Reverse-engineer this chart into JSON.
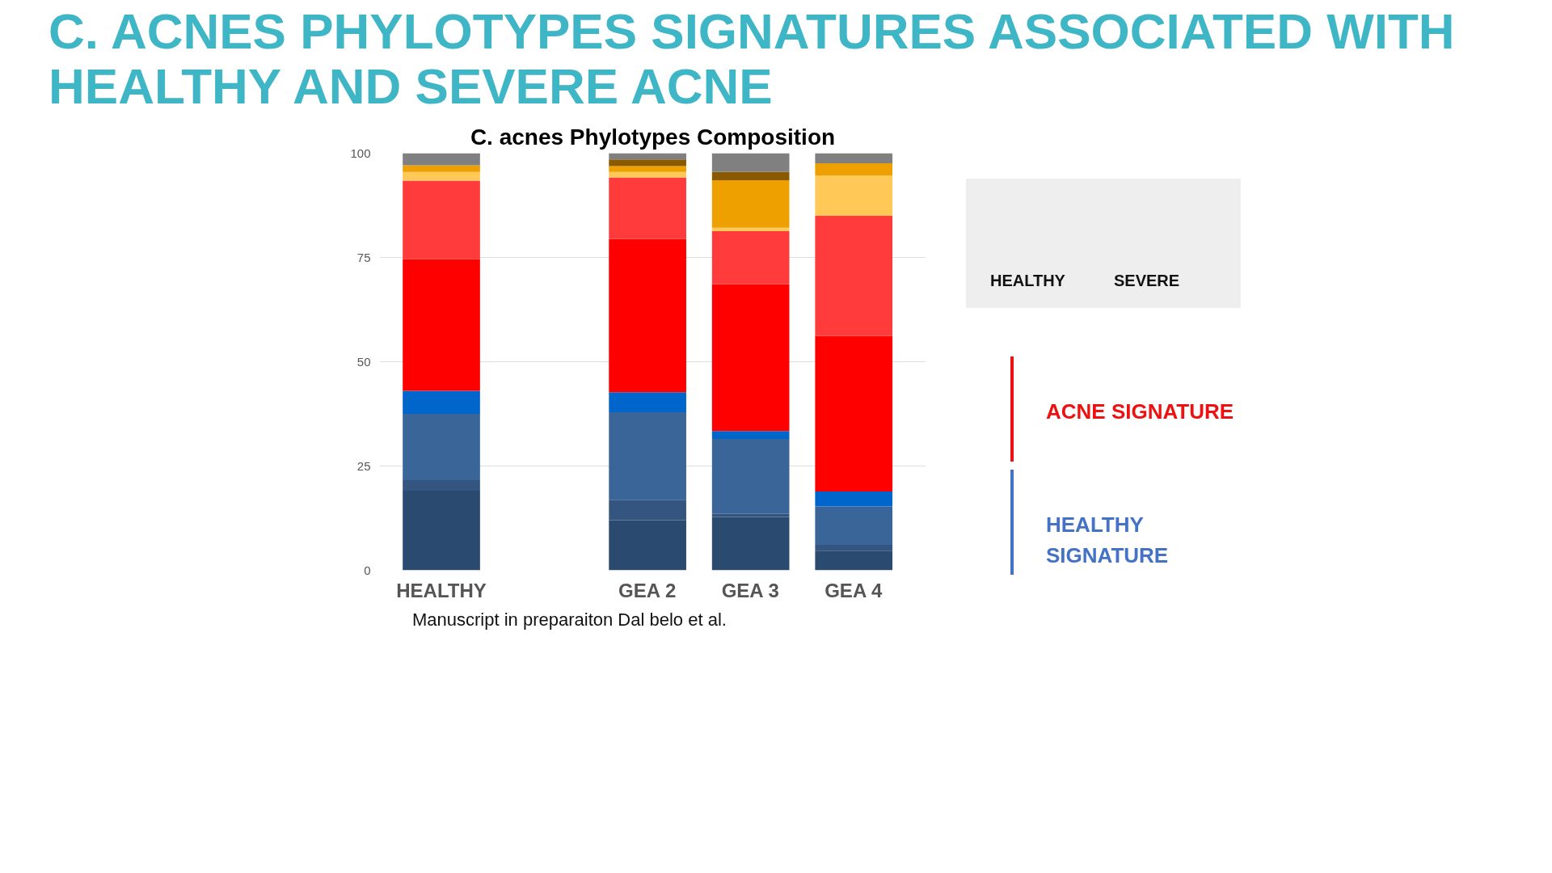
{
  "chart_data": {
    "type": "bar",
    "title": "C. ACNES PHYLOTYPES SIGNATURES ASSOCIATED WITH HEALTHY AND SEVERE ACNE",
    "subtitle": "C. acnes Phylotypes Composition",
    "categories": [
      "HEALTHY",
      null,
      "GEA 2",
      "GEA 3",
      "GEA 4"
    ],
    "stacked": true,
    "series": [
      {
        "color": "#2b4a6f",
        "values": [
          19.1,
          null,
          12.0,
          12.8,
          4.7
        ]
      },
      {
        "color": "#34557f",
        "values": [
          2.5,
          null,
          4.9,
          0.7,
          1.4
        ]
      },
      {
        "color": "#3a6598",
        "values": [
          15.9,
          null,
          21.0,
          18.0,
          9.2
        ]
      },
      {
        "color": "#0066cc",
        "values": [
          5.5,
          null,
          4.8,
          1.9,
          3.6
        ]
      },
      {
        "color": "#ff0000",
        "values": [
          31.6,
          null,
          36.7,
          35.2,
          37.3
        ]
      },
      {
        "color": "#ff3b3b",
        "values": [
          18.8,
          null,
          14.8,
          12.7,
          28.8
        ]
      },
      {
        "color": "#ffc857",
        "values": [
          2.1,
          null,
          1.3,
          0.8,
          9.6
        ]
      },
      {
        "color": "#eda000",
        "values": [
          1.6,
          null,
          1.4,
          11.4,
          3.0
        ]
      },
      {
        "color": "#8b5a00",
        "values": [
          0,
          null,
          1.6,
          2.0,
          0
        ]
      },
      {
        "color": "#808080",
        "values": [
          2.9,
          null,
          1.5,
          4.5,
          2.4
        ]
      }
    ],
    "ylim": [
      0,
      100
    ],
    "yticks": [
      0,
      25,
      50,
      75,
      100
    ],
    "grid": "y",
    "annotations": [
      "HEALTHY",
      "SEVERE",
      "ACNE SIGNATURE",
      "HEALTHY SIGNATURE",
      "Manuscript in preparaiton Dal belo et al."
    ]
  }
}
